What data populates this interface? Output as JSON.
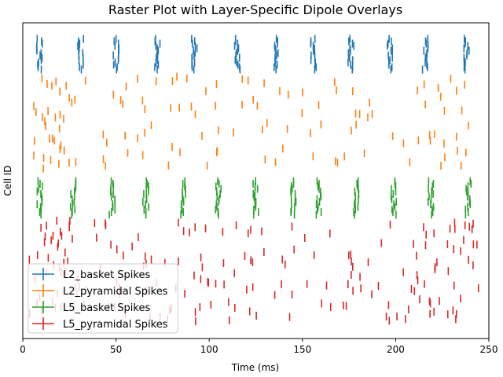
{
  "chart_data": {
    "type": "scatter",
    "title": "Raster Plot with Layer-Specific Dipole Overlays",
    "xlabel": "Time (ms)",
    "ylabel": "Cell ID",
    "xlim": [
      0,
      250
    ],
    "xticks": [
      "0",
      "50",
      "100",
      "150",
      "200",
      "250"
    ],
    "xtick_values": [
      0,
      50,
      100,
      150,
      200,
      250
    ],
    "yticks_visible": false,
    "grid": false,
    "legend_position": "lower-left",
    "series": [
      {
        "name": "L2_basket Spikes",
        "color": "#1f77b4",
        "burst_times_ms": [
          9,
          31,
          50,
          72,
          92,
          115,
          136,
          156,
          176,
          197,
          216,
          238
        ],
        "cell_range": [
          0,
          13
        ]
      },
      {
        "name": "L2_pyramidal Spikes",
        "color": "#ff7f0e",
        "cell_range": [
          13,
          36
        ]
      },
      {
        "name": "L5_basket Spikes",
        "color": "#2ca02c",
        "burst_times_ms": [
          9,
          27,
          48,
          66,
          86,
          105,
          125,
          145,
          159,
          179,
          199,
          219,
          239
        ],
        "cell_range": [
          36,
          48
        ]
      },
      {
        "name": "L5_pyramidal Spikes",
        "color": "#d62728",
        "cell_range": [
          48,
          80
        ]
      }
    ]
  }
}
